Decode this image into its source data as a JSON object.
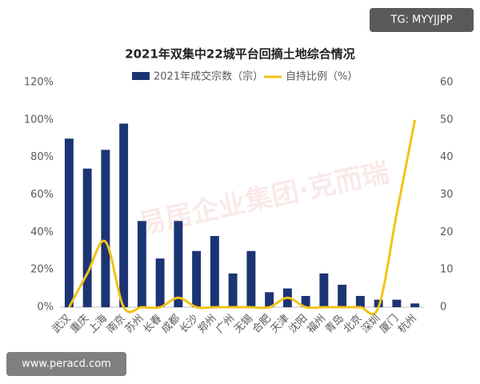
{
  "chart_data": {
    "type": "bar-line",
    "title": "2021年双集中22城平台回摘土地综合情况",
    "categories": [
      "武汉",
      "重庆",
      "上海",
      "南京",
      "苏州",
      "长春",
      "成都",
      "长沙",
      "郑州",
      "广州",
      "无锡",
      "合肥",
      "天津",
      "沈阳",
      "福州",
      "青岛",
      "北京",
      "深圳",
      "厦门",
      "杭州"
    ],
    "series": [
      {
        "name": "2021年成交宗数（宗）",
        "color": "#1c3473",
        "type": "bar",
        "values": [
          90,
          74,
          84,
          98,
          46,
          26,
          46,
          30,
          38,
          18,
          30,
          8,
          10,
          6,
          18,
          12,
          6,
          4,
          4,
          2
        ]
      },
      {
        "name": "自持比例（%）",
        "color": "#f2c318",
        "type": "line",
        "axis": "y2",
        "values": [
          0,
          9,
          17.5,
          0,
          0,
          0,
          2.5,
          0,
          0,
          0,
          0,
          0,
          2.5,
          0,
          0,
          0,
          0,
          0,
          25,
          50
        ]
      }
    ],
    "ylim": [
      0,
      120
    ],
    "yticks": [
      {
        "value": 0,
        "label": "0%"
      },
      {
        "value": 20,
        "label": "20%"
      },
      {
        "value": 40,
        "label": "40%"
      },
      {
        "value": 60,
        "label": "60%"
      },
      {
        "value": 80,
        "label": "80%"
      },
      {
        "value": 100,
        "label": "100%"
      },
      {
        "value": 120,
        "label": "120%"
      }
    ],
    "y2lim": [
      0,
      60
    ],
    "y2ticks": [
      0,
      10,
      20,
      30,
      40,
      50,
      60
    ],
    "annotations": [
      "TG: MYYJJPP",
      "www.peracd.com",
      "易居企业集团·克而瑞"
    ]
  }
}
